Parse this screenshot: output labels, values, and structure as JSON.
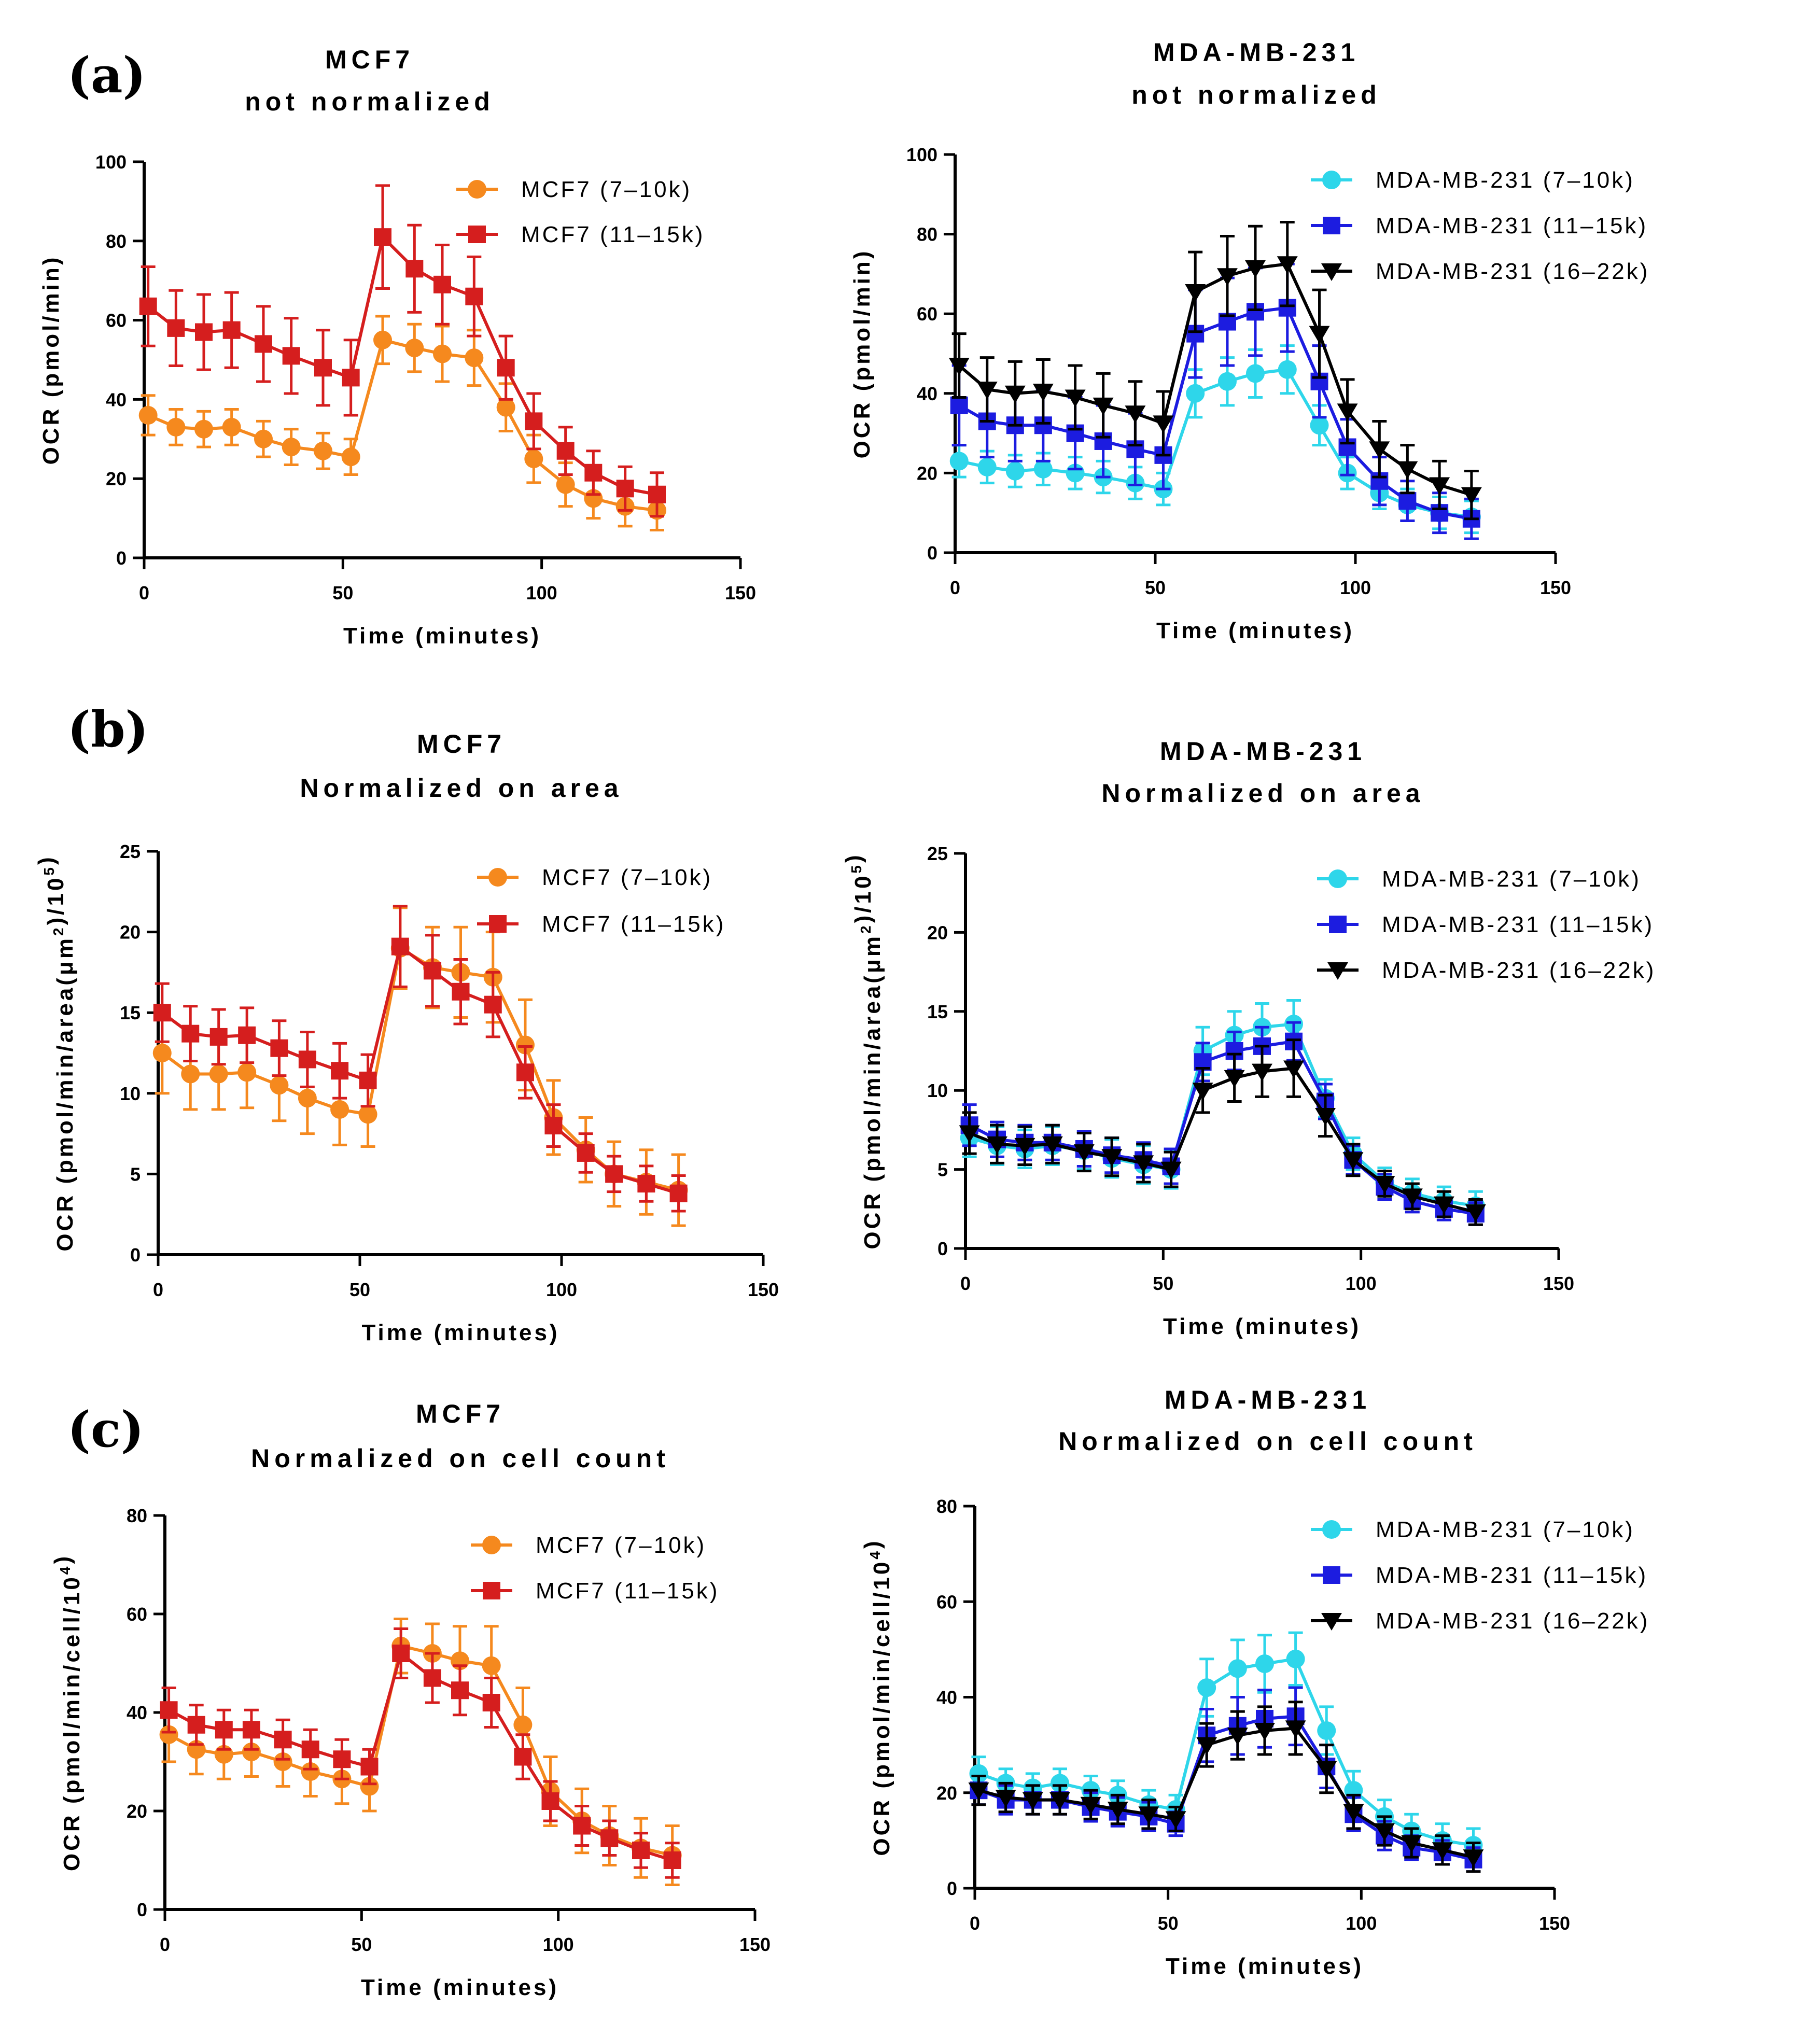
{
  "figure": {
    "panel_labels": [
      "(a)",
      "(b)",
      "(c)"
    ]
  },
  "series_styles": {
    "MCF7 (7–10k)": {
      "color": "#F5891E",
      "marker": "circle"
    },
    "MCF7 (11–15k)": {
      "color": "#D51E1E",
      "marker": "square"
    },
    "MDA-MB-231 (7–10k)": {
      "color": "#2ED6EA",
      "marker": "circle"
    },
    "MDA-MB-231 (11–15k)": {
      "color": "#1C1CE0",
      "marker": "square"
    },
    "MDA-MB-231 (16–22k)": {
      "color": "#000000",
      "marker": "triangle-down"
    }
  },
  "chart_data": [
    {
      "id": "a-mcf7",
      "panel": "(a)",
      "type": "line",
      "title": [
        "MCF7",
        "not normalized"
      ],
      "xlabel": "Time (minutes)",
      "ylabel": "OCR (pmol/min)",
      "xlim": [
        0,
        150
      ],
      "ylim": [
        0,
        100
      ],
      "xticks": [
        0,
        50,
        100,
        150
      ],
      "yticks": [
        0,
        20,
        40,
        60,
        80,
        100
      ],
      "legend": "top-right",
      "x": [
        1,
        8,
        15,
        22,
        30,
        37,
        45,
        52,
        60,
        68,
        75,
        83,
        91,
        98,
        106,
        113,
        121,
        129
      ],
      "series": [
        {
          "name": "MCF7 (7–10k)",
          "values": [
            36,
            33,
            32.5,
            33,
            30,
            28,
            27,
            25.5,
            55,
            53,
            51.5,
            50.5,
            38,
            25,
            18.5,
            15,
            13,
            12
          ],
          "errors": [
            5,
            4.5,
            4.5,
            4.5,
            4.5,
            4.5,
            4.5,
            4.5,
            6,
            6,
            7,
            7,
            6,
            6,
            5.5,
            5,
            5,
            5
          ]
        },
        {
          "name": "MCF7 (11–15k)",
          "values": [
            63.5,
            58,
            57,
            57.5,
            54,
            51,
            48,
            45.5,
            81,
            73,
            69,
            66,
            48,
            34.5,
            27,
            21.5,
            17.5,
            16
          ],
          "errors": [
            10,
            9.5,
            9.5,
            9.5,
            9.5,
            9.5,
            9.5,
            9.5,
            13,
            11,
            10,
            10,
            8,
            7,
            6,
            5.5,
            5.5,
            5.5
          ]
        }
      ]
    },
    {
      "id": "a-mda",
      "panel": "(a)",
      "type": "line",
      "title": [
        "MDA-MB-231",
        "not normalized"
      ],
      "xlabel": "Time (minutes)",
      "ylabel": "OCR (pmol/min)",
      "xlim": [
        0,
        150
      ],
      "ylim": [
        0,
        100
      ],
      "xticks": [
        0,
        50,
        100,
        150
      ],
      "yticks": [
        0,
        20,
        40,
        60,
        80,
        100
      ],
      "legend": "top-right",
      "x": [
        1,
        8,
        15,
        22,
        30,
        37,
        45,
        52,
        60,
        68,
        75,
        83,
        91,
        98,
        106,
        113,
        121,
        129
      ],
      "series": [
        {
          "name": "MDA-MB-231 (7–10k)",
          "values": [
            23,
            21.5,
            20.5,
            21,
            20,
            19,
            17.5,
            16,
            40,
            43,
            45,
            46,
            32,
            20,
            15,
            12,
            10,
            9
          ],
          "errors": [
            4,
            4,
            4,
            4,
            4,
            4,
            4,
            4,
            6,
            6,
            6,
            6,
            5,
            4,
            4,
            4,
            4,
            4
          ]
        },
        {
          "name": "MDA-MB-231 (11–15k)",
          "values": [
            37,
            33,
            32,
            32,
            30,
            28,
            26,
            24.5,
            55,
            58,
            60.5,
            61.5,
            43,
            26.5,
            18,
            13,
            10,
            8.5
          ],
          "errors": [
            10,
            9,
            9,
            9,
            9,
            9,
            9,
            8.5,
            11,
            11,
            11,
            11,
            9,
            7,
            6,
            5,
            5,
            5
          ]
        },
        {
          "name": "MDA-MB-231 (16–22k)",
          "values": [
            47,
            41,
            40,
            40.5,
            39,
            37,
            35,
            32.5,
            65.5,
            69.5,
            71.5,
            72.5,
            55,
            35.5,
            26,
            21,
            17,
            14.5
          ],
          "errors": [
            8,
            8,
            8,
            8,
            8,
            8,
            8,
            8,
            10,
            10,
            10.5,
            10.5,
            11,
            8,
            7,
            6,
            6,
            6
          ]
        }
      ]
    },
    {
      "id": "b-mcf7",
      "panel": "(b)",
      "type": "line",
      "title": [
        "MCF7",
        "Normalized on area"
      ],
      "xlabel": "Time (minutes)",
      "ylabel": "OCR (pmol/min/area(μm²)/10⁵)",
      "xlim": [
        0,
        150
      ],
      "ylim": [
        0,
        25
      ],
      "xticks": [
        0,
        50,
        100,
        150
      ],
      "yticks": [
        0,
        5,
        10,
        15,
        20,
        25
      ],
      "legend": "top-right",
      "x": [
        1,
        8,
        15,
        22,
        30,
        37,
        45,
        52,
        60,
        68,
        75,
        83,
        91,
        98,
        106,
        113,
        121,
        129
      ],
      "series": [
        {
          "name": "MCF7 (7–10k)",
          "values": [
            12.5,
            11.2,
            11.2,
            11.3,
            10.5,
            9.7,
            9.0,
            8.7,
            19.0,
            17.8,
            17.5,
            17.2,
            13.0,
            8.5,
            6.5,
            5.0,
            4.5,
            4.0
          ],
          "errors": [
            2.5,
            2.2,
            2.2,
            2.2,
            2.2,
            2.2,
            2.2,
            2.0,
            2.5,
            2.5,
            2.8,
            2.8,
            2.8,
            2.3,
            2.0,
            2.0,
            2.0,
            2.2
          ]
        },
        {
          "name": "MCF7 (11–15k)",
          "values": [
            15.0,
            13.7,
            13.5,
            13.6,
            12.8,
            12.1,
            11.4,
            10.8,
            19.1,
            17.6,
            16.3,
            15.5,
            11.3,
            8.0,
            6.3,
            5.0,
            4.4,
            3.8
          ],
          "errors": [
            1.8,
            1.7,
            1.7,
            1.7,
            1.7,
            1.7,
            1.7,
            1.6,
            2.5,
            2.2,
            2.0,
            2.0,
            1.6,
            1.3,
            1.2,
            1.1,
            1.1,
            1.1
          ]
        }
      ]
    },
    {
      "id": "b-mda",
      "panel": "(b)",
      "type": "line",
      "title": [
        "MDA-MB-231",
        "Normalized on area"
      ],
      "xlabel": "Time (minutes)",
      "ylabel": "OCR (pmol/min/area(μm²)/10⁵)",
      "xlim": [
        0,
        150
      ],
      "ylim": [
        0,
        25
      ],
      "xticks": [
        0,
        50,
        100,
        150
      ],
      "yticks": [
        0,
        5,
        10,
        15,
        20,
        25
      ],
      "legend": "top-right",
      "x": [
        1,
        8,
        15,
        22,
        30,
        37,
        45,
        52,
        60,
        68,
        75,
        83,
        91,
        98,
        106,
        113,
        121,
        129
      ],
      "series": [
        {
          "name": "MDA-MB-231 (7–10k)",
          "values": [
            7.0,
            6.5,
            6.3,
            6.5,
            6.2,
            5.7,
            5.3,
            5.0,
            12.5,
            13.5,
            14.0,
            14.2,
            9.5,
            6.0,
            4.2,
            3.5,
            3.0,
            2.7
          ],
          "errors": [
            1.2,
            1.2,
            1.2,
            1.2,
            1.2,
            1.2,
            1.2,
            1.2,
            1.5,
            1.5,
            1.5,
            1.5,
            1.2,
            1.0,
            0.9,
            0.9,
            0.9,
            0.9
          ]
        },
        {
          "name": "MDA-MB-231 (11–15k)",
          "values": [
            7.8,
            6.9,
            6.7,
            6.7,
            6.3,
            5.9,
            5.6,
            5.2,
            11.8,
            12.5,
            12.8,
            13.1,
            9.3,
            5.6,
            3.9,
            3.0,
            2.5,
            2.2
          ],
          "errors": [
            1.3,
            1.1,
            1.1,
            1.1,
            1.1,
            1.1,
            1.1,
            1.1,
            1.2,
            1.2,
            1.2,
            1.2,
            1.1,
            0.9,
            0.8,
            0.7,
            0.7,
            0.7
          ]
        },
        {
          "name": "MDA-MB-231 (16–22k)",
          "values": [
            7.3,
            6.6,
            6.5,
            6.6,
            6.1,
            5.8,
            5.4,
            5.0,
            10.0,
            10.8,
            11.2,
            11.4,
            8.4,
            5.6,
            4.1,
            3.3,
            2.8,
            2.3
          ],
          "errors": [
            1.3,
            1.2,
            1.2,
            1.2,
            1.2,
            1.2,
            1.2,
            1.1,
            1.4,
            1.5,
            1.6,
            1.8,
            1.3,
            1.0,
            0.8,
            0.8,
            0.8,
            0.8
          ]
        }
      ]
    },
    {
      "id": "c-mcf7",
      "panel": "(c)",
      "type": "line",
      "title": [
        "MCF7",
        "Normalized on cell count"
      ],
      "xlabel": "Time (minutes)",
      "ylabel": "OCR (pmol/min/cell/10⁴)",
      "xlim": [
        0,
        150
      ],
      "ylim": [
        0,
        80
      ],
      "xticks": [
        0,
        50,
        100,
        150
      ],
      "yticks": [
        0,
        20,
        40,
        60,
        80
      ],
      "legend": "top-right",
      "x": [
        1,
        8,
        15,
        22,
        30,
        37,
        45,
        52,
        60,
        68,
        75,
        83,
        91,
        98,
        106,
        113,
        121,
        129
      ],
      "series": [
        {
          "name": "MCF7 (7–10k)",
          "values": [
            35.5,
            32.5,
            31.5,
            32,
            30,
            28,
            26.5,
            25,
            53.5,
            52,
            50.5,
            49.5,
            37.5,
            24,
            18,
            15,
            12.5,
            11
          ],
          "errors": [
            5.5,
            5,
            5,
            5,
            5,
            5,
            5,
            5,
            5.5,
            6,
            7,
            8,
            7.5,
            7,
            6.5,
            6,
            6,
            6
          ]
        },
        {
          "name": "MCF7 (11–15k)",
          "values": [
            40.5,
            37.5,
            36.5,
            36.5,
            34.5,
            32.5,
            30.5,
            29,
            52,
            47,
            44.5,
            42,
            31,
            22,
            17,
            14.5,
            12,
            10
          ],
          "errors": [
            4.5,
            4,
            4,
            4,
            4,
            4,
            4,
            3.5,
            5,
            5,
            5,
            5,
            4.5,
            4,
            4,
            3.5,
            3.5,
            3.5
          ]
        }
      ]
    },
    {
      "id": "c-mda",
      "panel": "(c)",
      "type": "line",
      "title": [
        "MDA-MB-231",
        "Normalized on cell count"
      ],
      "xlabel": "Time (minutes)",
      "ylabel": "OCR (pmol/min/cell/10⁴)",
      "xlim": [
        0,
        150
      ],
      "ylim": [
        0,
        80
      ],
      "xticks": [
        0,
        50,
        100,
        150
      ],
      "yticks": [
        0,
        20,
        40,
        60,
        80
      ],
      "legend": "top-right",
      "x": [
        1,
        8,
        15,
        22,
        30,
        37,
        45,
        52,
        60,
        68,
        75,
        83,
        91,
        98,
        106,
        113,
        121,
        129
      ],
      "series": [
        {
          "name": "MDA-MB-231 (7–10k)",
          "values": [
            24,
            22,
            21,
            22,
            20.5,
            19.5,
            17.5,
            16.5,
            42,
            46,
            47,
            48,
            33,
            20.5,
            15,
            12,
            10,
            9
          ],
          "errors": [
            3.5,
            3,
            3,
            3,
            3,
            3,
            3,
            3,
            6,
            6,
            6,
            5.5,
            5,
            4,
            3.5,
            3.5,
            3.5,
            3.5
          ]
        },
        {
          "name": "MDA-MB-231 (11–15k)",
          "values": [
            20.5,
            18.5,
            18.5,
            18.5,
            17,
            16,
            15,
            13.5,
            32,
            34,
            35.5,
            36,
            25.5,
            15.5,
            11,
            8.5,
            7.5,
            6
          ],
          "errors": [
            3,
            3,
            3,
            3,
            3,
            3,
            3,
            2.5,
            5.5,
            6,
            6,
            6,
            4.5,
            3.5,
            3,
            2.5,
            2.5,
            2.5
          ]
        },
        {
          "name": "MDA-MB-231 (16–22k)",
          "values": [
            20.5,
            19,
            18.5,
            18.5,
            17.5,
            16.5,
            15.5,
            14.5,
            30,
            32,
            33,
            33.5,
            25,
            16,
            12,
            9.5,
            8,
            6.5
          ],
          "errors": [
            3,
            3,
            3,
            3,
            3,
            3,
            3,
            2.5,
            4.5,
            5,
            5,
            5.5,
            5,
            3.5,
            3,
            3,
            3,
            3
          ]
        }
      ]
    }
  ]
}
